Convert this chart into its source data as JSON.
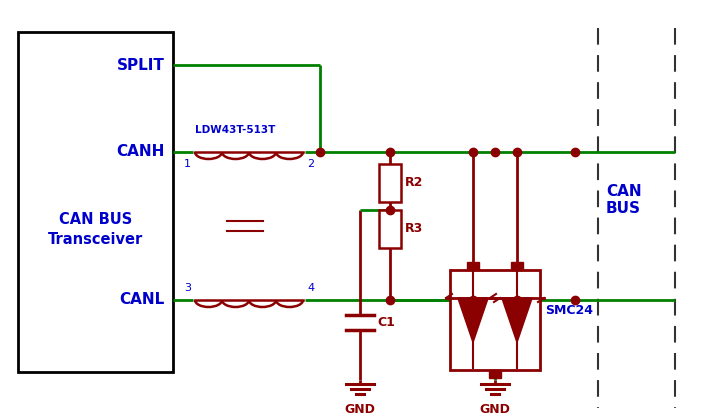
{
  "bg_color": "#ffffff",
  "green": "#008000",
  "dark": "#8b0000",
  "black": "#000000",
  "blue": "#0000cc",
  "box_label": "CAN BUS\nTransceiver",
  "split_label": "SPLIT",
  "canh_label": "CANH",
  "canl_label": "CANL",
  "can_bus_label": "CAN\nBUS",
  "ic_label": "LDW43T-513T",
  "r2_label": "R2",
  "r3_label": "R3",
  "c1_label": "C1",
  "smc_label": "SMC24",
  "pin1": "1",
  "pin2": "2",
  "pin3": "3",
  "pin4": "4"
}
